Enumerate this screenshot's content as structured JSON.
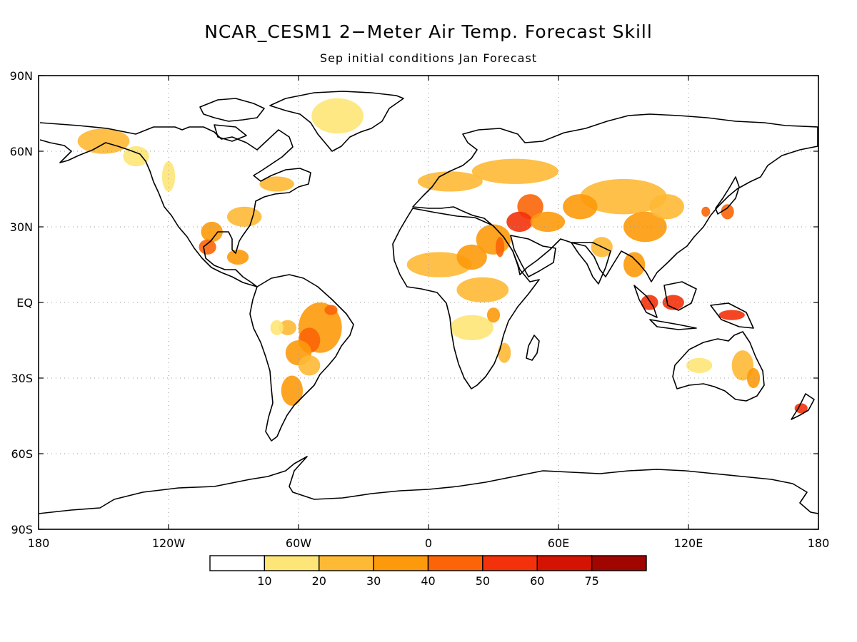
{
  "title": "NCAR_CESM1 2−Meter Air Temp. Forecast Skill",
  "subtitle": "Sep initial conditions  Jan Forecast",
  "map": {
    "projection": "cylindrical equidistant",
    "lon_range": [
      -180,
      180
    ],
    "lat_range": [
      -90,
      90
    ],
    "grid": true,
    "lat_ticks": [
      {
        "value": 90,
        "label": "90N"
      },
      {
        "value": 60,
        "label": "60N"
      },
      {
        "value": 30,
        "label": "30N"
      },
      {
        "value": 0,
        "label": "EQ"
      },
      {
        "value": -30,
        "label": "30S"
      },
      {
        "value": -60,
        "label": "60S"
      },
      {
        "value": -90,
        "label": "90S"
      }
    ],
    "lon_ticks": [
      {
        "value": -180,
        "label": "180"
      },
      {
        "value": -120,
        "label": "120W"
      },
      {
        "value": -60,
        "label": "60W"
      },
      {
        "value": 0,
        "label": "0"
      },
      {
        "value": 60,
        "label": "60E"
      },
      {
        "value": 120,
        "label": "120E"
      },
      {
        "value": 180,
        "label": "180"
      }
    ]
  },
  "colorbar": {
    "bins": [
      {
        "color": "#ffffff"
      },
      {
        "color": "#fee577",
        "label": "10"
      },
      {
        "color": "#feb935",
        "label": "20"
      },
      {
        "color": "#fd9a0b",
        "label": "30"
      },
      {
        "color": "#fb6508",
        "label": "40"
      },
      {
        "color": "#f3320b",
        "label": "50"
      },
      {
        "color": "#d41303",
        "label": "60"
      },
      {
        "color": "#a10500",
        "label": "75"
      }
    ]
  },
  "skill_regions": [
    {
      "lon": -150,
      "lat": 64,
      "rx": 12,
      "ry": 5,
      "level": 2
    },
    {
      "lon": -135,
      "lat": 58,
      "rx": 6,
      "ry": 4,
      "level": 1
    },
    {
      "lon": -120,
      "lat": 50,
      "rx": 3,
      "ry": 6,
      "level": 1
    },
    {
      "lon": -42,
      "lat": 74,
      "rx": 12,
      "ry": 7,
      "level": 1
    },
    {
      "lon": -70,
      "lat": 47,
      "rx": 8,
      "ry": 3,
      "level": 2
    },
    {
      "lon": -100,
      "lat": 28,
      "rx": 5,
      "ry": 4,
      "level": 3
    },
    {
      "lon": -102,
      "lat": 22,
      "rx": 4,
      "ry": 3,
      "level": 4
    },
    {
      "lon": -88,
      "lat": 18,
      "rx": 5,
      "ry": 3,
      "level": 3
    },
    {
      "lon": -85,
      "lat": 34,
      "rx": 8,
      "ry": 4,
      "level": 2
    },
    {
      "lon": -50,
      "lat": -10,
      "rx": 10,
      "ry": 10,
      "level": 3
    },
    {
      "lon": -55,
      "lat": -15,
      "rx": 5,
      "ry": 5,
      "level": 4
    },
    {
      "lon": -60,
      "lat": -20,
      "rx": 6,
      "ry": 5,
      "level": 3
    },
    {
      "lon": -65,
      "lat": -10,
      "rx": 4,
      "ry": 3,
      "level": 2
    },
    {
      "lon": -45,
      "lat": -3,
      "rx": 3,
      "ry": 2,
      "level": 4
    },
    {
      "lon": -63,
      "lat": -35,
      "rx": 5,
      "ry": 6,
      "level": 3
    },
    {
      "lon": -55,
      "lat": -25,
      "rx": 5,
      "ry": 4,
      "level": 2
    },
    {
      "lon": -70,
      "lat": -10,
      "rx": 3,
      "ry": 3,
      "level": 1
    },
    {
      "lon": 10,
      "lat": 48,
      "rx": 15,
      "ry": 4,
      "level": 2
    },
    {
      "lon": 40,
      "lat": 52,
      "rx": 20,
      "ry": 5,
      "level": 2
    },
    {
      "lon": 47,
      "lat": 38,
      "rx": 6,
      "ry": 5,
      "level": 4
    },
    {
      "lon": 42,
      "lat": 32,
      "rx": 6,
      "ry": 4,
      "level": 5
    },
    {
      "lon": 55,
      "lat": 32,
      "rx": 8,
      "ry": 4,
      "level": 3
    },
    {
      "lon": 30,
      "lat": 25,
      "rx": 8,
      "ry": 6,
      "level": 3
    },
    {
      "lon": 33,
      "lat": 22,
      "rx": 2,
      "ry": 4,
      "level": 4
    },
    {
      "lon": 5,
      "lat": 15,
      "rx": 15,
      "ry": 5,
      "level": 2
    },
    {
      "lon": 20,
      "lat": 18,
      "rx": 7,
      "ry": 5,
      "level": 3
    },
    {
      "lon": 25,
      "lat": 5,
      "rx": 12,
      "ry": 5,
      "level": 2
    },
    {
      "lon": 20,
      "lat": -10,
      "rx": 10,
      "ry": 5,
      "level": 1
    },
    {
      "lon": 30,
      "lat": -5,
      "rx": 3,
      "ry": 3,
      "level": 3
    },
    {
      "lon": 35,
      "lat": -20,
      "rx": 3,
      "ry": 4,
      "level": 2
    },
    {
      "lon": 90,
      "lat": 42,
      "rx": 20,
      "ry": 7,
      "level": 2
    },
    {
      "lon": 70,
      "lat": 38,
      "rx": 8,
      "ry": 5,
      "level": 3
    },
    {
      "lon": 100,
      "lat": 30,
      "rx": 10,
      "ry": 6,
      "level": 3
    },
    {
      "lon": 110,
      "lat": 38,
      "rx": 8,
      "ry": 5,
      "level": 2
    },
    {
      "lon": 80,
      "lat": 22,
      "rx": 5,
      "ry": 4,
      "level": 2
    },
    {
      "lon": 95,
      "lat": 15,
      "rx": 5,
      "ry": 5,
      "level": 3
    },
    {
      "lon": 102,
      "lat": 0,
      "rx": 4,
      "ry": 3,
      "level": 5
    },
    {
      "lon": 113,
      "lat": 0,
      "rx": 5,
      "ry": 3,
      "level": 5
    },
    {
      "lon": 140,
      "lat": -5,
      "rx": 6,
      "ry": 2,
      "level": 5
    },
    {
      "lon": 138,
      "lat": 36,
      "rx": 3,
      "ry": 3,
      "level": 4
    },
    {
      "lon": 128,
      "lat": 36,
      "rx": 2,
      "ry": 2,
      "level": 4
    },
    {
      "lon": 145,
      "lat": -25,
      "rx": 5,
      "ry": 6,
      "level": 2
    },
    {
      "lon": 150,
      "lat": -30,
      "rx": 3,
      "ry": 4,
      "level": 3
    },
    {
      "lon": 125,
      "lat": -25,
      "rx": 6,
      "ry": 3,
      "level": 1
    },
    {
      "lon": 172,
      "lat": -42,
      "rx": 3,
      "ry": 2,
      "level": 5
    }
  ]
}
